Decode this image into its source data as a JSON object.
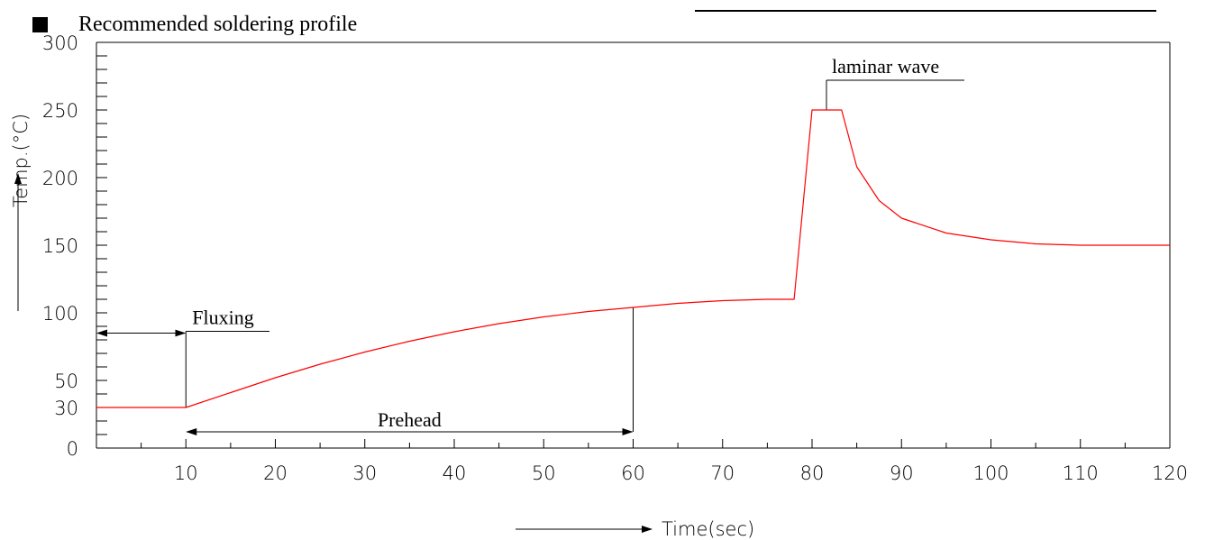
{
  "header": {
    "title": "Recommended soldering profile",
    "bullet_icon": "black-square-icon"
  },
  "chart_data": {
    "type": "line",
    "title": "Recommended soldering profile",
    "xlabel": "Time(sec)",
    "ylabel": "Temp.(°C)",
    "xlim": [
      0,
      120
    ],
    "ylim": [
      0,
      300
    ],
    "x_ticks": [
      10,
      20,
      30,
      40,
      50,
      60,
      70,
      80,
      90,
      100,
      110,
      120
    ],
    "y_ticks": [
      0,
      30,
      50,
      100,
      150,
      200,
      250,
      300
    ],
    "grid": false,
    "line_color": "#ff0000",
    "series": [
      {
        "x": [
          0,
          10,
          15,
          20,
          25,
          30,
          35,
          40,
          45,
          50,
          55,
          60,
          65,
          70,
          75,
          78,
          80,
          83.3,
          85,
          87.5,
          90,
          95,
          100,
          105,
          110,
          115,
          120
        ],
        "y": [
          30,
          30,
          41,
          52,
          62,
          71,
          79,
          86,
          92,
          97,
          101,
          104,
          107,
          109,
          110,
          110,
          250,
          250,
          208,
          183,
          170,
          159,
          154,
          151,
          150,
          150,
          150
        ]
      }
    ],
    "annotations": [
      {
        "text": "Fluxing",
        "x_start": 0,
        "x_end": 10,
        "y": 85,
        "type": "span-arrow"
      },
      {
        "text": "Prehead",
        "x_start": 10,
        "x_end": 60,
        "y": 12,
        "type": "span-arrow"
      },
      {
        "text": "laminar wave",
        "x_start": 80.2,
        "x_end": 83.3,
        "y": 250,
        "type": "bracket"
      }
    ]
  }
}
